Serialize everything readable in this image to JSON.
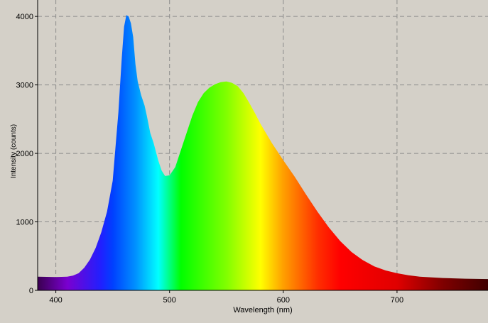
{
  "chart_data": {
    "type": "area",
    "x_label": "Wavelength (nm)",
    "y_label": "Intensity (counts)",
    "x": [
      384,
      400,
      410,
      415,
      420,
      425,
      430,
      435,
      440,
      445,
      450,
      455,
      458,
      460,
      462,
      464,
      466,
      468,
      470,
      472,
      475,
      478,
      480,
      483,
      486,
      490,
      493,
      496,
      500,
      505,
      510,
      515,
      520,
      525,
      530,
      535,
      540,
      545,
      550,
      555,
      560,
      565,
      570,
      575,
      580,
      590,
      600,
      610,
      620,
      630,
      640,
      650,
      660,
      670,
      680,
      690,
      700,
      710,
      720,
      740,
      760,
      780
    ],
    "values": [
      200,
      195,
      200,
      215,
      250,
      330,
      450,
      620,
      850,
      1150,
      1600,
      2600,
      3400,
      3850,
      4020,
      4000,
      3900,
      3700,
      3300,
      3050,
      2850,
      2700,
      2550,
      2300,
      2150,
      1900,
      1750,
      1670,
      1680,
      1800,
      2050,
      2300,
      2550,
      2750,
      2880,
      2960,
      3010,
      3040,
      3050,
      3030,
      2980,
      2880,
      2740,
      2590,
      2430,
      2150,
      1900,
      1660,
      1400,
      1150,
      920,
      720,
      560,
      440,
      350,
      290,
      250,
      220,
      200,
      180,
      170,
      165
    ],
    "xlim": [
      384,
      780
    ],
    "ylim": [
      0,
      4240
    ],
    "xticks": [
      400,
      500,
      600,
      700
    ],
    "yticks": [
      0,
      1000,
      2000,
      3000,
      4000
    ],
    "grid": true
  }
}
